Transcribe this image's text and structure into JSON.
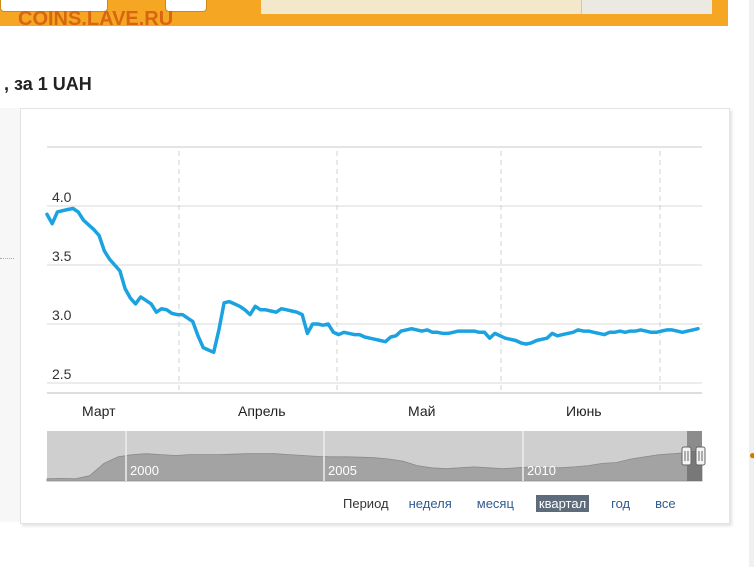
{
  "watermark": "COINS.LAVE.RU",
  "page": {
    "title": ", за 1 UAH"
  },
  "colors": {
    "line": "#1aa3e0",
    "topbar": "#f5a623",
    "watermark": "#d45a10",
    "active_period": "#5d6b7a"
  },
  "periods": {
    "label": "Период",
    "items": [
      {
        "label": "неделя",
        "active": false
      },
      {
        "label": "месяц",
        "active": false
      },
      {
        "label": "квартал",
        "active": true
      },
      {
        "label": "год",
        "active": false
      },
      {
        "label": "все",
        "active": false
      }
    ]
  },
  "chart_data": {
    "type": "line",
    "title": "",
    "xlabel": "",
    "ylabel": "",
    "ylim": [
      2.5,
      4.5
    ],
    "yticks": [
      2.5,
      3.0,
      3.5,
      4.0
    ],
    "ytick_labels": [
      "2.5",
      "3.0",
      "3.5",
      "4.0"
    ],
    "grid": true,
    "month_labels": [
      "Март",
      "Апрель",
      "Май",
      "Июнь"
    ],
    "series": [
      {
        "x": [
          0,
          1,
          2,
          3,
          4,
          5,
          6,
          7,
          8,
          9,
          10,
          11,
          12,
          13,
          14,
          15,
          16,
          17,
          18,
          19,
          20,
          21,
          22,
          23,
          24,
          25,
          26,
          27,
          28,
          29,
          30,
          31,
          32,
          33,
          34,
          35,
          36,
          37,
          38,
          39,
          40,
          41,
          42,
          43,
          44,
          45,
          46,
          47,
          48,
          49,
          50,
          51,
          52,
          53,
          54,
          55,
          56,
          57,
          58,
          59,
          60,
          61,
          62,
          63,
          64,
          65,
          66,
          67,
          68,
          69,
          70,
          71,
          72,
          73,
          74,
          75,
          76,
          77,
          78,
          79,
          80,
          81,
          82,
          83,
          84,
          85,
          86,
          87,
          88,
          89,
          90,
          91,
          92,
          93,
          94,
          95,
          96,
          97,
          98,
          99,
          100,
          101,
          102,
          103,
          104,
          105,
          106,
          107,
          108,
          109,
          110,
          111,
          112,
          113,
          114,
          115,
          116,
          117,
          118,
          119,
          120,
          121,
          122,
          123,
          124,
          125
        ],
        "values": [
          3.93,
          3.85,
          3.95,
          3.96,
          3.97,
          3.98,
          3.95,
          3.88,
          3.84,
          3.8,
          3.75,
          3.62,
          3.55,
          3.5,
          3.45,
          3.3,
          3.22,
          3.17,
          3.23,
          3.2,
          3.17,
          3.1,
          3.13,
          3.12,
          3.09,
          3.08,
          3.08,
          3.05,
          3.02,
          2.9,
          2.8,
          2.78,
          2.76,
          2.95,
          3.18,
          3.19,
          3.17,
          3.15,
          3.12,
          3.08,
          3.15,
          3.12,
          3.12,
          3.11,
          3.1,
          3.13,
          3.12,
          3.11,
          3.1,
          3.08,
          2.92,
          3.0,
          3.0,
          2.99,
          3.0,
          2.93,
          2.91,
          2.93,
          2.92,
          2.91,
          2.91,
          2.89,
          2.88,
          2.87,
          2.86,
          2.85,
          2.89,
          2.9,
          2.94,
          2.95,
          2.96,
          2.95,
          2.94,
          2.95,
          2.93,
          2.93,
          2.92,
          2.92,
          2.93,
          2.94,
          2.94,
          2.94,
          2.94,
          2.93,
          2.93,
          2.88,
          2.92,
          2.9,
          2.88,
          2.87,
          2.86,
          2.84,
          2.83,
          2.84,
          2.86,
          2.87,
          2.88,
          2.92,
          2.9,
          2.91,
          2.92,
          2.93,
          2.95,
          2.94,
          2.94,
          2.93,
          2.92,
          2.91,
          2.93,
          2.93,
          2.94,
          2.93,
          2.94,
          2.94,
          2.95,
          2.94,
          2.93,
          2.93,
          2.94,
          2.95,
          2.95,
          2.94,
          2.93,
          2.94,
          2.95,
          2.96
        ]
      }
    ],
    "navigator": {
      "year_labels": [
        "2000",
        "2005",
        "2010"
      ]
    }
  }
}
